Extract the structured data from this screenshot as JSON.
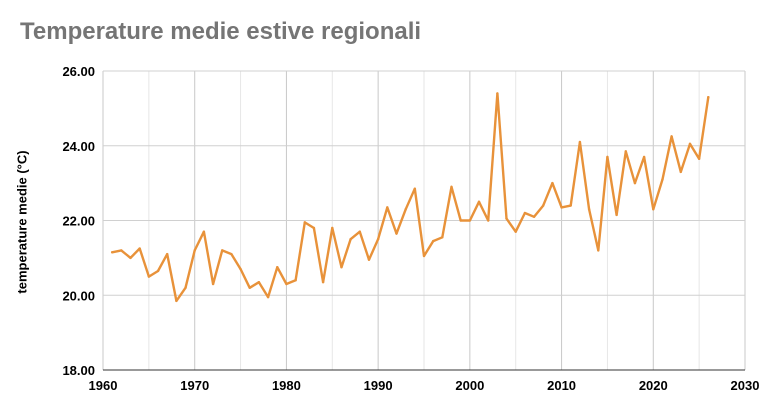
{
  "chart_data": {
    "type": "line",
    "title": "Temperature medie estive regionali",
    "xlabel": "",
    "ylabel": "temperature medie (°C)",
    "xlim": [
      1960,
      2030
    ],
    "ylim": [
      18.0,
      26.0
    ],
    "x_ticks": [
      1960,
      1970,
      1980,
      1990,
      2000,
      2010,
      2020,
      2030
    ],
    "y_ticks": [
      18.0,
      20.0,
      22.0,
      24.0,
      26.0
    ],
    "y_tick_labels": [
      "18.00",
      "20.00",
      "22.00",
      "24.00",
      "26.00"
    ],
    "x_tick_labels": [
      "1960",
      "1970",
      "1980",
      "1990",
      "2000",
      "2010",
      "2020",
      "2030"
    ],
    "grid": true,
    "series": [
      {
        "color": "#E8923A",
        "x": [
          1961,
          1962,
          1963,
          1964,
          1965,
          1966,
          1967,
          1968,
          1969,
          1970,
          1971,
          1972,
          1973,
          1974,
          1975,
          1976,
          1977,
          1978,
          1979,
          1980,
          1981,
          1982,
          1983,
          1984,
          1985,
          1986,
          1987,
          1988,
          1989,
          1990,
          1991,
          1992,
          1993,
          1994,
          1995,
          1996,
          1997,
          1998,
          1999,
          2000,
          2001,
          2002,
          2003,
          2004,
          2005,
          2006,
          2007,
          2008,
          2009,
          2010,
          2011,
          2012,
          2013,
          2014,
          2015,
          2016,
          2017,
          2018,
          2019,
          2020,
          2021,
          2022,
          2023,
          2024,
          2025,
          2026
        ],
        "values": [
          21.15,
          21.2,
          21.0,
          21.25,
          20.5,
          20.65,
          21.1,
          19.85,
          20.2,
          21.2,
          21.7,
          20.3,
          21.2,
          21.1,
          20.7,
          20.2,
          20.35,
          19.95,
          20.75,
          20.3,
          20.4,
          21.95,
          21.8,
          20.35,
          21.8,
          20.75,
          21.5,
          21.7,
          20.95,
          21.5,
          22.35,
          21.65,
          22.3,
          22.85,
          21.05,
          21.45,
          21.55,
          22.9,
          22.0,
          22.0,
          22.5,
          22.0,
          25.4,
          22.05,
          21.7,
          22.2,
          22.1,
          22.4,
          23.0,
          22.35,
          22.4,
          24.1,
          22.3,
          21.2,
          23.7,
          22.15,
          23.85,
          23.0,
          23.7,
          22.3,
          23.1,
          24.25,
          23.3,
          24.05,
          23.65,
          25.3
        ]
      }
    ]
  }
}
